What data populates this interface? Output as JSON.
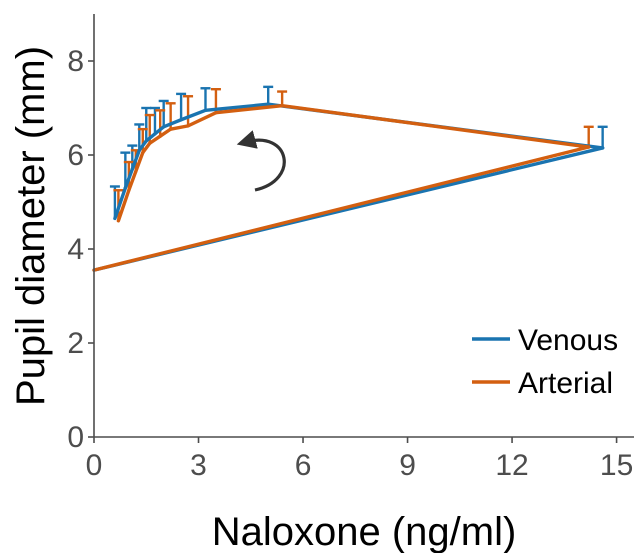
{
  "chart_data": {
    "type": "line",
    "title": "",
    "xlabel": "Naloxone (ng/ml)",
    "ylabel": "Pupil diameter (mm)",
    "xlim": [
      0,
      15.5
    ],
    "ylim": [
      0,
      9
    ],
    "xticks": [
      "0",
      "3",
      "6",
      "9",
      "12",
      "15"
    ],
    "yticks": [
      "0",
      "2",
      "4",
      "6",
      "8"
    ],
    "xtick_values": [
      0,
      3,
      6,
      9,
      12,
      15
    ],
    "ytick_values": [
      0,
      2,
      4,
      6,
      8
    ],
    "grid": false,
    "legend_position": "bottom-right",
    "annotation": "counter-clockwise hysteresis arrow",
    "series": [
      {
        "name": "Venous",
        "color": "#1a74b0",
        "x": [
          0.6,
          0.9,
          1.1,
          1.3,
          1.5,
          1.75,
          2.0,
          2.5,
          3.2,
          5.0,
          14.6,
          0
        ],
        "y": [
          4.65,
          5.3,
          5.7,
          6.1,
          6.3,
          6.45,
          6.6,
          6.75,
          6.95,
          7.08,
          6.15,
          3.55
        ],
        "err_upper": [
          5.33,
          6.05,
          6.2,
          6.65,
          7.0,
          7.0,
          7.15,
          7.3,
          7.42,
          7.45,
          6.6,
          null
        ]
      },
      {
        "name": "Arterial",
        "color": "#d35f10",
        "x": [
          0.7,
          1.0,
          1.2,
          1.4,
          1.6,
          1.9,
          2.2,
          2.7,
          3.5,
          5.4,
          14.2,
          0
        ],
        "y": [
          4.6,
          5.25,
          5.65,
          6.05,
          6.25,
          6.4,
          6.55,
          6.62,
          6.9,
          7.05,
          6.17,
          3.55
        ],
        "err_upper": [
          5.25,
          5.85,
          6.1,
          6.55,
          6.85,
          6.95,
          7.1,
          7.25,
          7.4,
          7.35,
          6.6,
          null
        ]
      }
    ]
  }
}
